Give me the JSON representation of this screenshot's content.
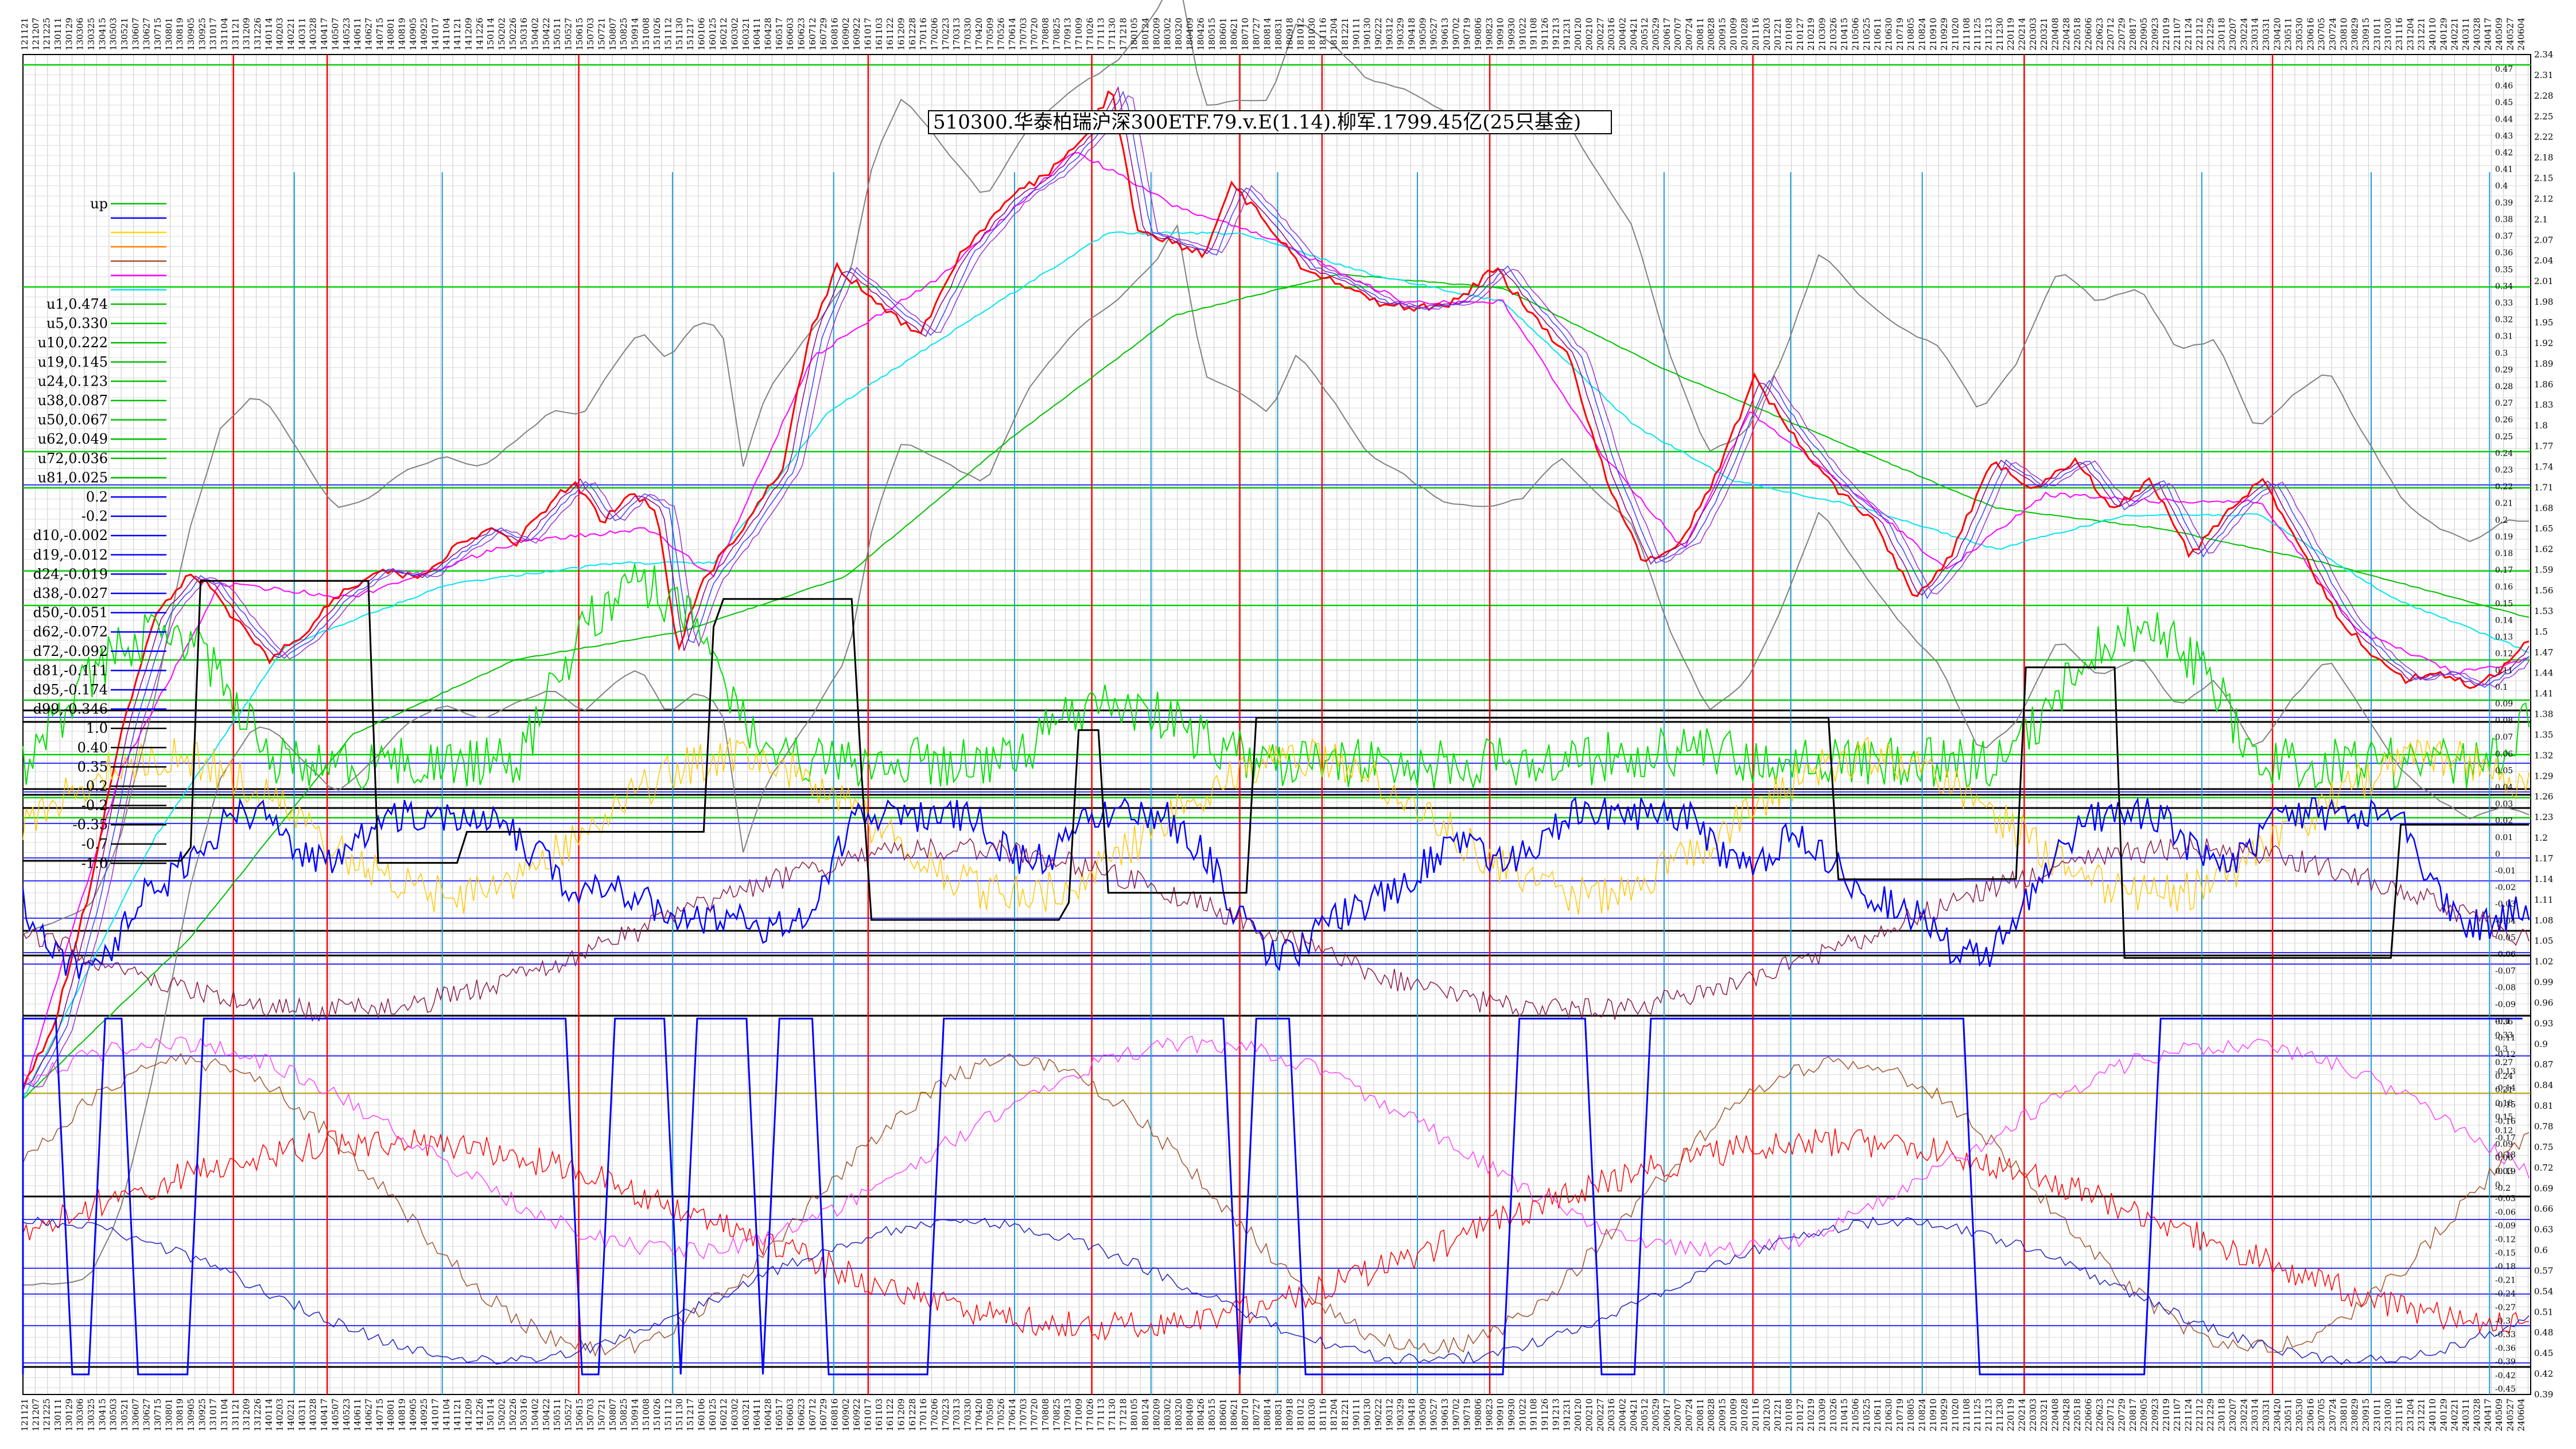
{
  "chart_data": {
    "type": "line",
    "title": "510300.华泰柏瑞沪深300ETF.79.v.E(1.14).柳军.1799.45亿(25只基金)",
    "xlabel": "",
    "ylabel": "",
    "grid": true,
    "legend_placement": "left",
    "x_tick_labels": [
      "121121",
      "121207",
      "121225",
      "130111",
      "130129",
      "130306",
      "130325",
      "130415",
      "130503",
      "130521",
      "130607",
      "130627",
      "130715",
      "130801",
      "130819",
      "130905",
      "130925",
      "131017",
      "131104",
      "131121",
      "131209",
      "131226",
      "140114",
      "140203",
      "140221",
      "140311",
      "140328",
      "140417",
      "140507",
      "140523",
      "140611",
      "140627",
      "140715",
      "140801",
      "140819",
      "140905",
      "140925",
      "141017",
      "141104",
      "141121",
      "141209",
      "141226",
      "150114",
      "150202",
      "150226",
      "150316",
      "150402",
      "150422",
      "150511",
      "150527",
      "150615",
      "150703",
      "150721",
      "150807",
      "150825",
      "150914",
      "151008",
      "151026",
      "151112",
      "151130",
      "151217",
      "160106",
      "160125",
      "160212",
      "160302",
      "160321",
      "160411",
      "160428",
      "160517",
      "160603",
      "160623",
      "160712",
      "160729",
      "160816",
      "160902",
      "160922",
      "161017",
      "161103",
      "161122",
      "161209",
      "161228",
      "170116",
      "170206",
      "170223",
      "170313",
      "170330",
      "170420",
      "170509",
      "170526",
      "170614",
      "170703",
      "170720",
      "170808",
      "170825",
      "170913",
      "171009",
      "171026",
      "171113",
      "171130",
      "171218",
      "180105",
      "180124",
      "180209",
      "180302",
      "180320",
      "180409",
      "180426",
      "180515",
      "180601",
      "180621",
      "180710",
      "180727",
      "180814",
      "180831",
      "180918",
      "181012",
      "181030",
      "181116",
      "181204",
      "181221",
      "190111",
      "190130",
      "190222",
      "190312",
      "190329",
      "190418",
      "190509",
      "190527",
      "190613",
      "190702",
      "190719",
      "190806",
      "190823",
      "190910",
      "190930",
      "191022",
      "191108",
      "191126",
      "191213",
      "191231",
      "200120",
      "200210",
      "200227",
      "200316",
      "200402",
      "200421",
      "200512",
      "200529",
      "200617",
      "200707",
      "200724",
      "200811",
      "200828",
      "200915",
      "201009",
      "201028",
      "201116",
      "201203",
      "201221",
      "210108",
      "210127",
      "210219",
      "210309",
      "210326",
      "210415",
      "210506",
      "210525",
      "210611",
      "210630",
      "210719",
      "210805",
      "210824",
      "210910",
      "210929",
      "211020",
      "211108",
      "211125",
      "211213",
      "211230",
      "220119",
      "220214",
      "220303",
      "220321",
      "220408",
      "220428",
      "220518",
      "220606",
      "220623",
      "220712",
      "220729",
      "220817",
      "220905",
      "220923",
      "221019",
      "221107",
      "221124",
      "221212",
      "221229",
      "230118",
      "230207",
      "230224",
      "230314",
      "230331",
      "230420",
      "230511",
      "230530",
      "230616",
      "230705",
      "230724",
      "230810",
      "230829",
      "230915",
      "231011",
      "231030",
      "231116",
      "231204",
      "231221",
      "240110",
      "240129",
      "240221",
      "240311",
      "240328",
      "240417",
      "240509",
      "240527",
      "240604"
    ],
    "right_axis_price": {
      "ticks": [
        "2.34",
        "2.31",
        "2.28",
        "2.25",
        "2.22",
        "2.18",
        "2.15",
        "2.12",
        "2.1",
        "2.07",
        "2.04",
        "2.01",
        "1.98",
        "1.95",
        "1.92",
        "1.89",
        "1.86",
        "1.83",
        "1.8",
        "1.77",
        "1.74",
        "1.71",
        "1.68",
        "1.65",
        "1.62",
        "1.59",
        "1.56",
        "1.53",
        "1.5",
        "1.47",
        "1.44",
        "1.41",
        "1.38",
        "1.35",
        "1.32",
        "1.29",
        "1.26",
        "1.23",
        "1.2",
        "1.17",
        "1.14",
        "1.11",
        "1.08",
        "1.05",
        "1.02",
        "0.99",
        "0.96",
        "0.93",
        "0.9",
        "0.87",
        "0.84",
        "0.81",
        "0.78",
        "0.75",
        "0.72",
        "0.69",
        "0.66",
        "0.63",
        "0.6",
        "0.57",
        "0.54",
        "0.51",
        "0.48",
        "0.45",
        "0.42",
        "0.39"
      ]
    },
    "right_axis_oscillator_upper": {
      "ticks": [
        "0.47",
        "0.46",
        "0.45",
        "0.44",
        "0.43",
        "0.42",
        "0.41",
        "0.4",
        "0.39",
        "0.38",
        "0.37",
        "0.36",
        "0.35",
        "0.34",
        "0.33",
        "0.32",
        "0.31",
        "0.3",
        "0.29",
        "0.28",
        "0.27",
        "0.26",
        "0.25",
        "0.24",
        "0.23",
        "0.22",
        "0.21",
        "0.2",
        "0.19",
        "0.18",
        "0.17",
        "0.16",
        "0.15",
        "0.14",
        "0.13",
        "0.12",
        "0.11",
        "0.1",
        "0.09",
        "0.08",
        "0.07",
        "0.06",
        "0.05",
        "0.04",
        "0.03",
        "0.02",
        "0.01",
        "0",
        "-0.01",
        "-0.02",
        "-0.03",
        "-0.04",
        "-0.05",
        "-0.06",
        "-0.07",
        "-0.08",
        "-0.09",
        "-0.1",
        "-0.11",
        "-0.12",
        "-0.13",
        "-0.14",
        "-0.15",
        "-0.16",
        "-0.17",
        "-0.18",
        "-0.19",
        "-0.2"
      ]
    },
    "right_axis_oscillator_lower": {
      "ticks": [
        "0.36",
        "0.33",
        "0.3",
        "0.27",
        "0.24",
        "0.21",
        "0.18",
        "0.15",
        "0.12",
        "0.09",
        "0.06",
        "0.03",
        "0",
        "-0.03",
        "-0.06",
        "-0.09",
        "-0.12",
        "-0.15",
        "-0.18",
        "-0.21",
        "-0.24",
        "-0.27",
        "-0.3",
        "-0.33",
        "-0.36",
        "-0.39",
        "-0.42",
        "-0.45"
      ]
    },
    "legend": [
      {
        "label": "up",
        "color": "#00c000"
      },
      {
        "label": "",
        "color": "#0000ff"
      },
      {
        "label": "",
        "color": "#ffd700"
      },
      {
        "label": "",
        "color": "#ff8000"
      },
      {
        "label": "",
        "color": "#a0522d"
      },
      {
        "label": "",
        "color": "#ff00ff"
      },
      {
        "label": "",
        "color": "#00e5ee"
      },
      {
        "label": "u1,0.474",
        "color": "#00c000"
      },
      {
        "label": "u5,0.330",
        "color": "#00c000"
      },
      {
        "label": "u10,0.222",
        "color": "#00c000"
      },
      {
        "label": "u19,0.145",
        "color": "#00c000"
      },
      {
        "label": "u24,0.123",
        "color": "#00c000"
      },
      {
        "label": "u38,0.087",
        "color": "#00c000"
      },
      {
        "label": "u50,0.067",
        "color": "#00c000"
      },
      {
        "label": "u62,0.049",
        "color": "#00c000"
      },
      {
        "label": "u72,0.036",
        "color": "#00c000"
      },
      {
        "label": "u81,0.025",
        "color": "#00c000"
      },
      {
        "label": "0.2",
        "color": "#0000ff"
      },
      {
        "label": "-0.2",
        "color": "#0000ff"
      },
      {
        "label": "d10,-0.002",
        "color": "#0000ff"
      },
      {
        "label": "d19,-0.012",
        "color": "#0000ff"
      },
      {
        "label": "d24,-0.019",
        "color": "#0000ff"
      },
      {
        "label": "d38,-0.027",
        "color": "#0000ff"
      },
      {
        "label": "d50,-0.051",
        "color": "#0000ff"
      },
      {
        "label": "d62,-0.072",
        "color": "#0000ff"
      },
      {
        "label": "d72,-0.092",
        "color": "#0000ff"
      },
      {
        "label": "d81,-0.111",
        "color": "#0000ff"
      },
      {
        "label": "d95,-0.174",
        "color": "#0000ff"
      },
      {
        "label": "d99,-0.346",
        "color": "#0000ff"
      },
      {
        "label": "1.0",
        "color": "#000000"
      },
      {
        "label": "0.40",
        "color": "#000000"
      },
      {
        "label": "0.35",
        "color": "#000000"
      },
      {
        "label": "0.2",
        "color": "#000000"
      },
      {
        "label": "-0.2",
        "color": "#000000"
      },
      {
        "label": "-0.35",
        "color": "#000000"
      },
      {
        "label": "-0.7",
        "color": "#000000"
      },
      {
        "label": "-1.0",
        "color": "#000000"
      }
    ],
    "series": [
      {
        "values": [
          [
            0,
            0.84
          ],
          [
            18,
            0.92
          ],
          [
            40,
            1.12
          ],
          [
            60,
            1.36
          ],
          [
            80,
            1.52
          ],
          [
            100,
            1.58
          ],
          [
            112,
            1.57
          ],
          [
            135,
            1.5
          ],
          [
            150,
            1.46
          ],
          [
            168,
            1.49
          ],
          [
            190,
            1.55
          ],
          [
            215,
            1.59
          ],
          [
            240,
            1.58
          ],
          [
            262,
            1.62
          ],
          [
            282,
            1.65
          ],
          [
            300,
            1.63
          ],
          [
            318,
            1.68
          ],
          [
            335,
            1.72
          ],
          [
            352,
            1.66
          ],
          [
            370,
            1.7
          ],
          [
            385,
            1.68
          ],
          [
            398,
            1.47
          ],
          [
            412,
            1.57
          ],
          [
            440,
            1.66
          ],
          [
            462,
            1.74
          ],
          [
            478,
            1.93
          ],
          [
            495,
            2.03
          ],
          [
            520,
            1.98
          ],
          [
            545,
            1.93
          ],
          [
            570,
            2.05
          ],
          [
            600,
            2.13
          ],
          [
            625,
            2.17
          ],
          [
            648,
            2.23
          ],
          [
            662,
            2.29
          ],
          [
            678,
            2.08
          ],
          [
            695,
            2.07
          ],
          [
            718,
            2.05
          ],
          [
            735,
            2.15
          ],
          [
            755,
            2.1
          ],
          [
            778,
            2.03
          ],
          [
            800,
            2.01
          ],
          [
            822,
            1.98
          ],
          [
            845,
            1.97
          ],
          [
            872,
            1.98
          ],
          [
            895,
            2.03
          ],
          [
            915,
            1.97
          ],
          [
            940,
            1.9
          ],
          [
            962,
            1.73
          ],
          [
            985,
            1.6
          ],
          [
            1008,
            1.63
          ],
          [
            1030,
            1.73
          ],
          [
            1053,
            1.87
          ],
          [
            1078,
            1.78
          ],
          [
            1102,
            1.71
          ],
          [
            1126,
            1.66
          ],
          [
            1150,
            1.55
          ],
          [
            1172,
            1.61
          ],
          [
            1198,
            1.75
          ],
          [
            1222,
            1.71
          ],
          [
            1248,
            1.75
          ],
          [
            1270,
            1.68
          ],
          [
            1294,
            1.72
          ],
          [
            1318,
            1.61
          ],
          [
            1342,
            1.68
          ],
          [
            1362,
            1.72
          ],
          [
            1385,
            1.62
          ],
          [
            1408,
            1.52
          ],
          [
            1428,
            1.47
          ],
          [
            1448,
            1.43
          ],
          [
            1470,
            1.44
          ],
          [
            1490,
            1.42
          ],
          [
            1510,
            1.45
          ],
          [
            1525,
            1.49
          ]
        ],
        "color": "#ff0000"
      },
      {
        "values": [
          [
            0,
            0.83
          ],
          [
            60,
            1.3
          ],
          [
            120,
            1.57
          ],
          [
            200,
            1.55
          ],
          [
            300,
            1.63
          ],
          [
            380,
            1.65
          ],
          [
            420,
            1.58
          ],
          [
            480,
            1.9
          ],
          [
            560,
            2.02
          ],
          [
            640,
            2.2
          ],
          [
            700,
            2.12
          ],
          [
            760,
            2.07
          ],
          [
            840,
            1.98
          ],
          [
            900,
            1.98
          ],
          [
            960,
            1.76
          ],
          [
            1010,
            1.62
          ],
          [
            1050,
            1.82
          ],
          [
            1120,
            1.69
          ],
          [
            1170,
            1.59
          ],
          [
            1230,
            1.7
          ],
          [
            1300,
            1.69
          ],
          [
            1360,
            1.69
          ],
          [
            1420,
            1.5
          ],
          [
            1480,
            1.44
          ],
          [
            1525,
            1.46
          ]
        ],
        "color": "#ff00ff"
      },
      {
        "values": [
          [
            0,
            0.82
          ],
          [
            80,
            1.2
          ],
          [
            160,
            1.48
          ],
          [
            260,
            1.57
          ],
          [
            360,
            1.6
          ],
          [
            420,
            1.6
          ],
          [
            490,
            1.82
          ],
          [
            580,
            1.96
          ],
          [
            660,
            2.08
          ],
          [
            740,
            2.08
          ],
          [
            820,
            2.02
          ],
          [
            900,
            1.98
          ],
          [
            980,
            1.8
          ],
          [
            1040,
            1.72
          ],
          [
            1120,
            1.68
          ],
          [
            1200,
            1.62
          ],
          [
            1280,
            1.67
          ],
          [
            1360,
            1.67
          ],
          [
            1440,
            1.55
          ],
          [
            1525,
            1.47
          ]
        ],
        "color": "#00e5ee"
      },
      {
        "values": [
          [
            0,
            0.82
          ],
          [
            100,
            1.05
          ],
          [
            200,
            1.35
          ],
          [
            300,
            1.46
          ],
          [
            400,
            1.5
          ],
          [
            500,
            1.58
          ],
          [
            600,
            1.78
          ],
          [
            700,
            1.96
          ],
          [
            800,
            2.02
          ],
          [
            900,
            2.0
          ],
          [
            1000,
            1.88
          ],
          [
            1100,
            1.78
          ],
          [
            1200,
            1.68
          ],
          [
            1300,
            1.65
          ],
          [
            1400,
            1.6
          ],
          [
            1525,
            1.52
          ]
        ],
        "color": "#00c000"
      }
    ],
    "markers": {
      "red_lines_x_index": [
        128,
        185,
        338,
        514,
        650,
        740,
        790,
        892,
        1052,
        1217,
        1368
      ],
      "cyan_lines_x_index": [
        165,
        255,
        395,
        493,
        603,
        686,
        763,
        848,
        998,
        1075,
        1155,
        1325,
        1428,
        1500
      ]
    },
    "annotations": [
      "510300.华泰柏瑞沪深300ETF.79.v.E(1.14).柳军.1799.45亿(25只基金)"
    ]
  },
  "colors": {
    "price_red": "#ff0000",
    "magenta": "#ff00ff",
    "cyan": "#00e5ee",
    "green": "#00c000",
    "blue": "#0000ff",
    "black": "#000000",
    "yellow": "#ffd700",
    "orange": "#ff8000",
    "brown": "#a0522d",
    "grid": "#c8c8c8"
  }
}
